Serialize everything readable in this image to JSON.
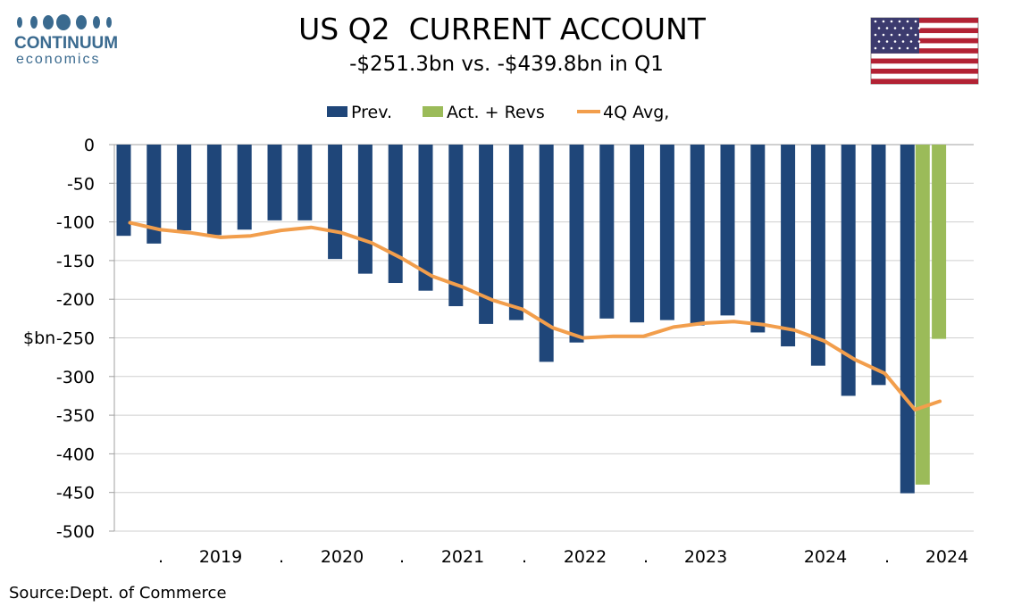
{
  "brand": {
    "name_top": "CONTINUUM",
    "name_bottom": "economics",
    "color": "#3a6a8f"
  },
  "flag": {
    "icon": "us-flag-icon"
  },
  "source": "Source:Dept. of Commerce",
  "chart_data": {
    "type": "bar",
    "title": "US Q2  CURRENT ACCOUNT",
    "subtitle": "-$251.3bn vs. -$439.8bn in Q1",
    "ylabel": "$bn",
    "ylim": [
      -500,
      0
    ],
    "yticks": [
      0,
      -50,
      -100,
      -150,
      -200,
      -250,
      -300,
      -350,
      -400,
      -450,
      -500
    ],
    "grid": true,
    "legend_position": "top-center",
    "xtick_labels": [
      ".",
      "2019",
      ".",
      "2020",
      ".",
      "2021",
      ".",
      "2022",
      ".",
      "2023",
      "2024",
      ".",
      "2024"
    ],
    "series": [
      {
        "name": "Prev.",
        "kind": "bar",
        "color": "#1f4679",
        "values": [
          -118,
          -128,
          -111,
          -117,
          -110,
          -98,
          -98,
          -148,
          -167,
          -179,
          -189,
          -209,
          -232,
          -227,
          -281,
          -256,
          -225,
          -230,
          -227,
          -234,
          -221,
          -243,
          -261,
          -286,
          -325,
          -311,
          -451
        ]
      },
      {
        "name": "Act. + Revs",
        "kind": "bar",
        "color": "#9bbb59",
        "values": [
          -439.8,
          -251.3
        ]
      },
      {
        "name": "4Q Avg,",
        "kind": "line",
        "color": "#f29e4c",
        "values": [
          -101,
          -110,
          -114,
          -120,
          -118,
          -111,
          -107,
          -114,
          -127,
          -147,
          -170,
          -184,
          -201,
          -213,
          -237,
          -250,
          -248,
          -248,
          -236,
          -231,
          -229,
          -233,
          -240,
          -254,
          -278,
          -296,
          -343,
          -332
        ]
      }
    ]
  }
}
